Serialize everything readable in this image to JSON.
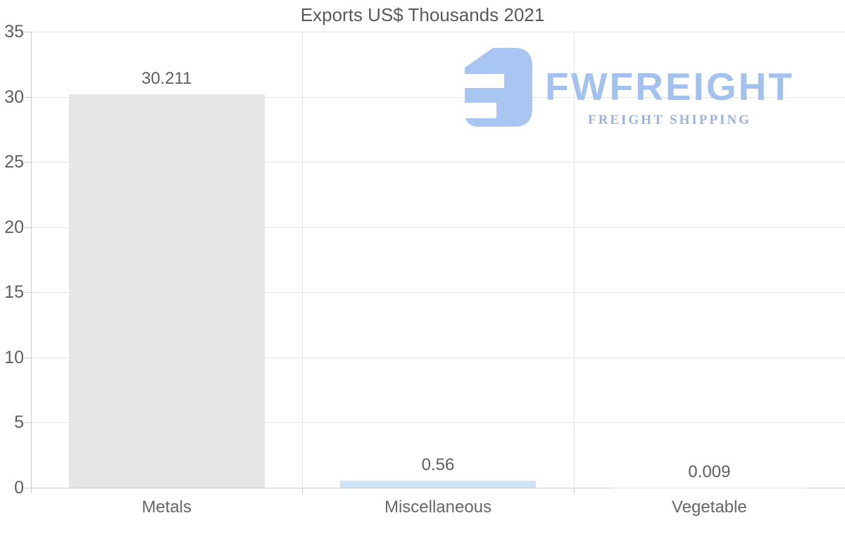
{
  "chart_data": {
    "type": "bar",
    "title": "Exports US$ Thousands 2021",
    "categories": [
      "Metals",
      "Miscellaneous",
      "Vegetable"
    ],
    "values": [
      30.211,
      0.56,
      0.009
    ],
    "value_labels": [
      "30.211",
      "0.56",
      "0.009"
    ],
    "bar_colors": [
      "#e6e6e6",
      "#cfe2f6",
      "#e6e6e6"
    ],
    "xlabel": "",
    "ylabel": "",
    "ylim": [
      0,
      35
    ],
    "yticks": [
      0,
      5,
      10,
      15,
      20,
      25,
      30,
      35
    ],
    "grid": true,
    "legend": false
  },
  "watermark": {
    "brand": "FWFREIGHT",
    "tagline": "FREIGHT SHIPPING",
    "logo_color": "#a9c5f1",
    "brand_color": "#a3c1ee",
    "tagline_color": "#9cb1dc"
  },
  "colors": {
    "grid": "#e4e4e4",
    "axis": "#cccccc",
    "text": "#5f5f5f",
    "background": "#ffffff"
  }
}
